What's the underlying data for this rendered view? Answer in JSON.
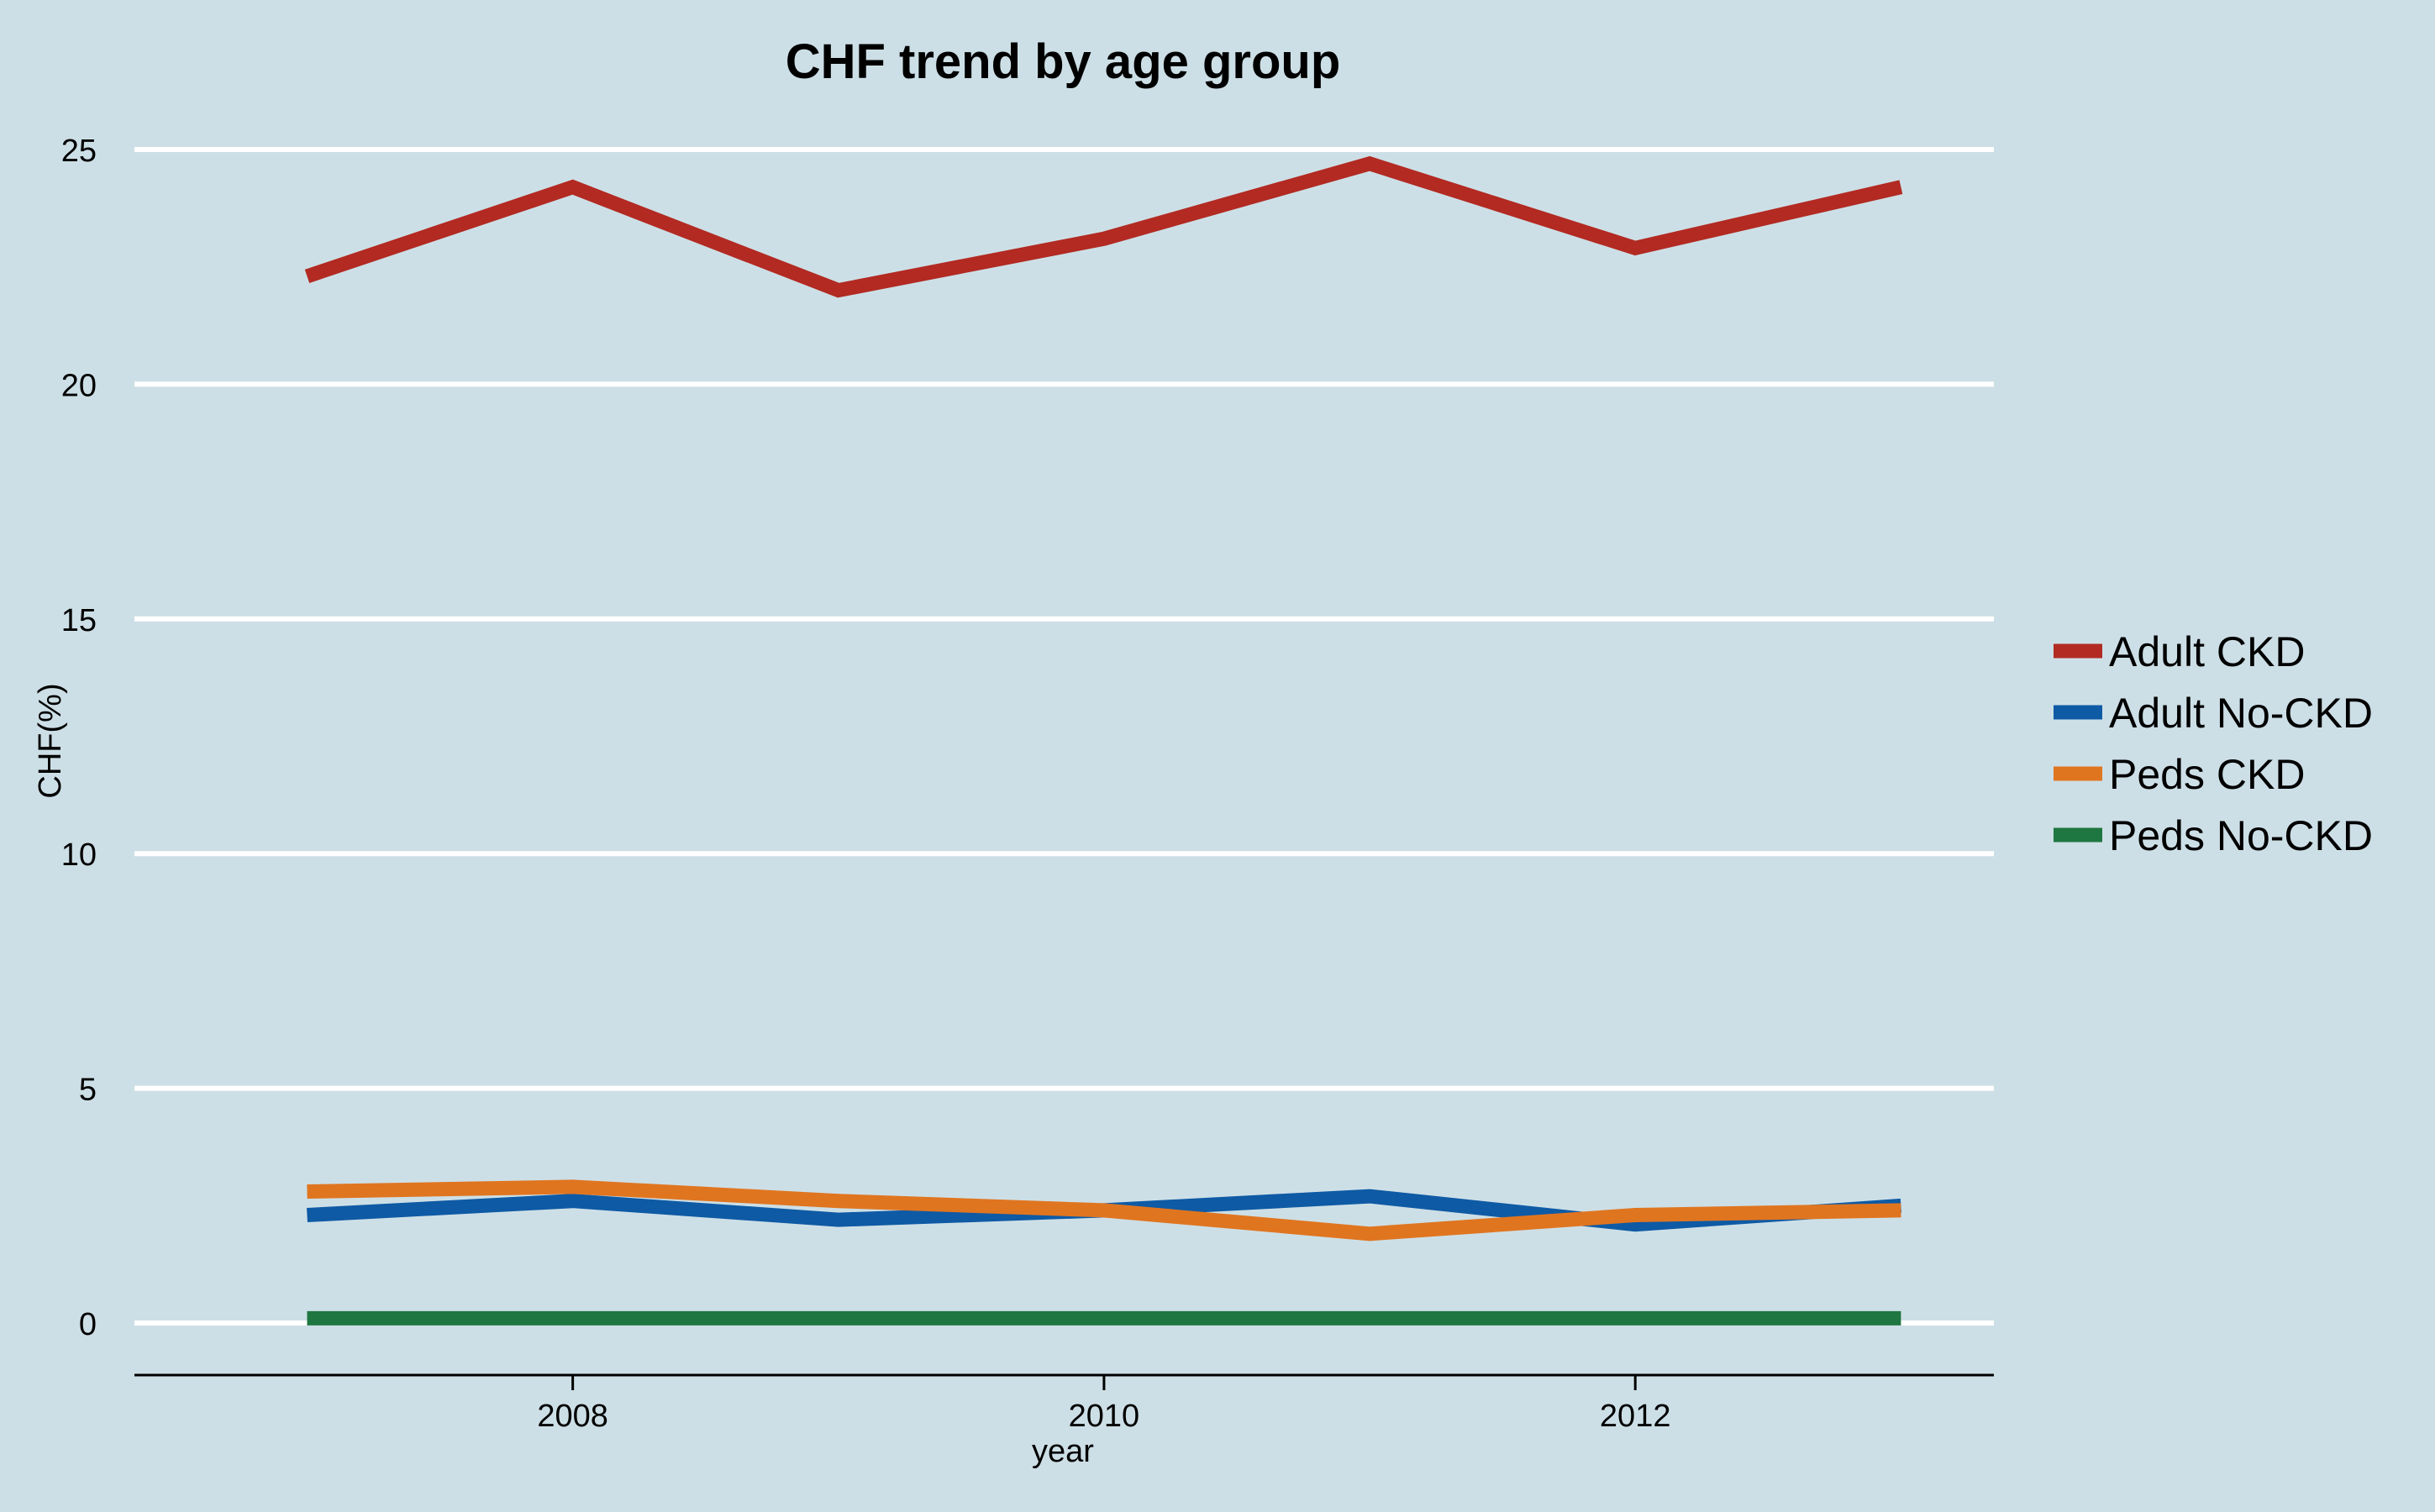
{
  "chart_data": {
    "type": "line",
    "title": "CHF trend by age group",
    "xlabel": "year",
    "ylabel": "CHF(%)",
    "x": [
      2007,
      2008,
      2009,
      2010,
      2011,
      2012,
      2013
    ],
    "xlim": [
      2006.35,
      2013.35
    ],
    "ylim": [
      -1.1,
      25.8
    ],
    "xticks": [
      2008,
      2010,
      2012
    ],
    "xtick_labels": [
      "2008",
      "2010",
      "2012"
    ],
    "yticks": [
      0,
      5,
      10,
      15,
      20,
      25
    ],
    "ytick_labels": [
      "0",
      "5",
      "10",
      "15",
      "20",
      "25"
    ],
    "grid": "horizontal",
    "legend_position": "right",
    "series": [
      {
        "name": "Adult CKD",
        "color": "#b22a22",
        "values": [
          22.3,
          24.2,
          22.0,
          23.1,
          24.7,
          22.9,
          24.2
        ]
      },
      {
        "name": "Adult No-CKD",
        "color": "#0e5aa5",
        "values": [
          2.3,
          2.6,
          2.2,
          2.4,
          2.7,
          2.1,
          2.5
        ]
      },
      {
        "name": "Peds CKD",
        "color": "#e07520",
        "values": [
          2.8,
          2.9,
          2.6,
          2.4,
          1.9,
          2.3,
          2.4
        ]
      },
      {
        "name": "Peds No-CKD",
        "color": "#1e7640",
        "values": [
          0.1,
          0.1,
          0.1,
          0.1,
          0.1,
          0.1,
          0.1
        ]
      }
    ]
  }
}
